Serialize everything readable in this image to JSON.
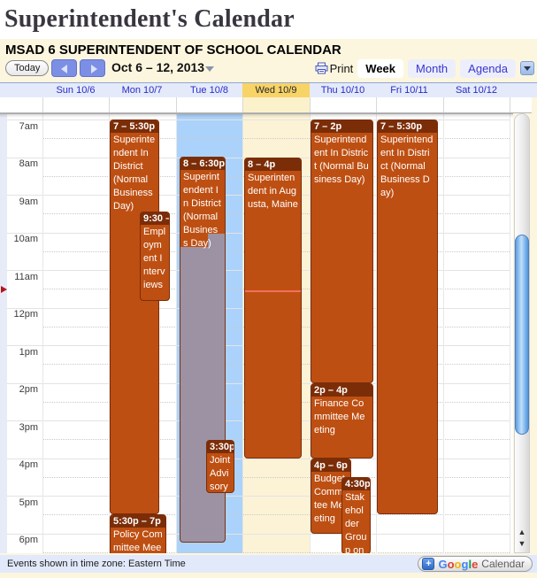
{
  "page": {
    "title": "Superintendent's Calendar"
  },
  "calendar": {
    "heading": "MSAD 6 SUPERINTENDENT OF SCHOOL CALENDAR",
    "toolbar": {
      "today_label": "Today",
      "date_range": "Oct 6 – 12, 2013",
      "print_label": "Print",
      "view_week": "Week",
      "view_month": "Month",
      "view_agenda": "Agenda"
    },
    "days": [
      {
        "label": "Sun 10/6",
        "is_today": false
      },
      {
        "label": "Mon 10/7",
        "is_today": false
      },
      {
        "label": "Tue 10/8",
        "is_today": false
      },
      {
        "label": "Wed 10/9",
        "is_today": true
      },
      {
        "label": "Thu 10/10",
        "is_today": false
      },
      {
        "label": "Fri 10/11",
        "is_today": false
      },
      {
        "label": "Sat 10/12",
        "is_today": false
      }
    ],
    "hours": [
      "7am",
      "8am",
      "9am",
      "10am",
      "11am",
      "12pm",
      "1pm",
      "2pm",
      "3pm",
      "4pm",
      "5pm",
      "6pm"
    ],
    "events": [
      {
        "day": "Mon 10/7",
        "time": "7 – 5:30p",
        "title": "Superintendent In District (Normal Business Day)"
      },
      {
        "day": "Mon 10/7",
        "time": "9:30 –",
        "title": "Employment Interviews"
      },
      {
        "day": "Mon 10/7",
        "time": "5:30p – 7p",
        "title": "Policy Committee Meeting"
      },
      {
        "day": "Tue 10/8",
        "time": "8 – 6:30p",
        "title": "Superintendent In District (Normal Business Day)"
      },
      {
        "day": "Tue 10/8",
        "time": "3:30p",
        "title": "Joint Advisory Com"
      },
      {
        "day": "Wed 10/9",
        "time": "8 – 4p",
        "title": "Superintendent in Augusta, Maine"
      },
      {
        "day": "Thu 10/10",
        "time": "7 – 2p",
        "title": "Superintendent In District (Normal Business Day)"
      },
      {
        "day": "Thu 10/10",
        "time": "2p – 4p",
        "title": "Finance Committee Meeting"
      },
      {
        "day": "Thu 10/10",
        "time": "4p – 6p",
        "title": "Budget Committee Meeting"
      },
      {
        "day": "Thu 10/10",
        "time": "4:30p",
        "title": "Stakeholder Group on"
      },
      {
        "day": "Fri 10/11",
        "time": "7 – 5:30p",
        "title": "Superintendent In District (Normal Business Day)"
      }
    ],
    "footer": {
      "timezone_note": "Events shown in time zone: Eastern Time",
      "badge": {
        "plus": "+",
        "g1": "G",
        "g2": "o",
        "g3": "o",
        "g4": "g",
        "g5": "l",
        "g6": "e",
        "calendar_word": "Calendar"
      }
    },
    "colors": {
      "event_body": "#be4f12",
      "event_header": "#7b2d08",
      "declined_event": "#9c92a3",
      "selected_day_column": "#abd2fa",
      "today_column": "#fcf3d6",
      "today_header_cell": "#f8d366",
      "day_label_text": "#2a2ac8",
      "now_line": "#f4705c",
      "widget_background": "#fdf6df",
      "header_strip": "#e4eaf9",
      "footer_bar": "#e2e9fa",
      "nav_button": "#7c8fe4",
      "scroll_thumb": "#5e9de4"
    }
  }
}
